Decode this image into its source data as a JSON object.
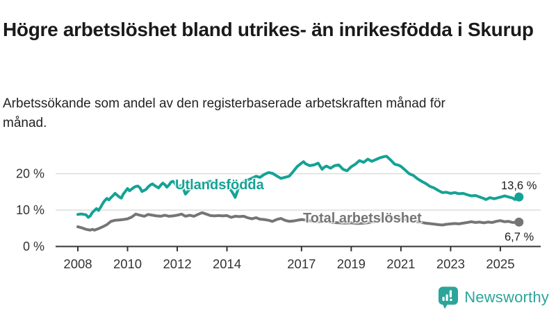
{
  "header": {
    "title": "Högre arbetslöshet bland utrikes- än inrikesfödda i Skurup",
    "subtitle": "Arbetssökande som andel av den registerbaserade arbetskraften månad för månad."
  },
  "chart_data": {
    "type": "line",
    "title": "Högre arbetslöshet bland utrikes- än inrikesfödda i Skurup",
    "xlabel": "",
    "ylabel": "",
    "x_axis": {
      "tick_years": [
        2008,
        2010,
        2012,
        2014,
        2017,
        2019,
        2021,
        2023,
        2025
      ],
      "tick_labels": [
        "2008",
        "2010",
        "2012",
        "2014",
        "2017",
        "2019",
        "2021",
        "2023",
        "2025"
      ],
      "range": [
        2007.3,
        2026.5
      ]
    },
    "y_axis": {
      "ticks": [
        0,
        10,
        20
      ],
      "tick_labels": [
        "0 %",
        "10 %",
        "20 %"
      ],
      "range": [
        0,
        26
      ],
      "unit": "%"
    },
    "grid": "horizontal",
    "colors": {
      "grid": "#dddddd",
      "axis": "#333333",
      "tick_text": "#333333"
    },
    "series": [
      {
        "name": "Utlandsfödda",
        "color": "#14a295",
        "end_value": 13.6,
        "end_label": "13,6 %",
        "points": [
          [
            2008.0,
            8.8
          ],
          [
            2008.08,
            8.9
          ],
          [
            2008.17,
            8.9
          ],
          [
            2008.25,
            8.8
          ],
          [
            2008.33,
            8.7
          ],
          [
            2008.42,
            8.0
          ],
          [
            2008.5,
            8.4
          ],
          [
            2008.58,
            9.3
          ],
          [
            2008.67,
            9.9
          ],
          [
            2008.75,
            10.4
          ],
          [
            2008.83,
            9.9
          ],
          [
            2008.92,
            10.8
          ],
          [
            2009.0,
            11.8
          ],
          [
            2009.08,
            12.6
          ],
          [
            2009.17,
            13.2
          ],
          [
            2009.25,
            12.8
          ],
          [
            2009.33,
            13.4
          ],
          [
            2009.42,
            14.0
          ],
          [
            2009.5,
            14.6
          ],
          [
            2009.58,
            14.1
          ],
          [
            2009.67,
            13.6
          ],
          [
            2009.75,
            13.3
          ],
          [
            2009.83,
            14.4
          ],
          [
            2009.92,
            15.2
          ],
          [
            2010.0,
            15.9
          ],
          [
            2010.08,
            15.3
          ],
          [
            2010.17,
            15.8
          ],
          [
            2010.25,
            16.2
          ],
          [
            2010.33,
            16.5
          ],
          [
            2010.42,
            16.6
          ],
          [
            2010.5,
            16.1
          ],
          [
            2010.58,
            15.1
          ],
          [
            2010.67,
            15.4
          ],
          [
            2010.75,
            15.7
          ],
          [
            2010.83,
            16.4
          ],
          [
            2010.92,
            16.9
          ],
          [
            2011.0,
            17.2
          ],
          [
            2011.08,
            16.8
          ],
          [
            2011.17,
            16.4
          ],
          [
            2011.25,
            16.1
          ],
          [
            2011.33,
            16.8
          ],
          [
            2011.42,
            17.4
          ],
          [
            2011.5,
            17.0
          ],
          [
            2011.58,
            16.3
          ],
          [
            2011.67,
            16.9
          ],
          [
            2011.75,
            17.7
          ],
          [
            2011.83,
            17.9
          ],
          [
            2011.92,
            17.2
          ],
          [
            2012.0,
            16.3
          ],
          [
            2012.08,
            16.6
          ],
          [
            2012.17,
            16.8
          ],
          [
            2012.25,
            15.8
          ],
          [
            2012.33,
            14.4
          ],
          [
            2012.42,
            15.1
          ],
          [
            2012.5,
            15.8
          ],
          [
            2012.58,
            16.1
          ],
          [
            2012.67,
            16.4
          ],
          [
            2012.83,
            16.9
          ],
          [
            2013.0,
            17.3
          ],
          [
            2013.17,
            17.6
          ],
          [
            2013.33,
            17.9
          ],
          [
            2013.5,
            17.2
          ],
          [
            2013.67,
            16.6
          ],
          [
            2013.83,
            16.1
          ],
          [
            2014.0,
            16.4
          ],
          [
            2014.08,
            15.9
          ],
          [
            2014.17,
            15.4
          ],
          [
            2014.25,
            14.5
          ],
          [
            2014.33,
            13.5
          ],
          [
            2014.42,
            15.2
          ],
          [
            2014.5,
            17.0
          ],
          [
            2014.58,
            17.5
          ],
          [
            2014.75,
            18.0
          ],
          [
            2014.92,
            18.5
          ],
          [
            2015.08,
            19.0
          ],
          [
            2015.17,
            19.3
          ],
          [
            2015.33,
            19.0
          ],
          [
            2015.5,
            19.8
          ],
          [
            2015.67,
            20.3
          ],
          [
            2015.83,
            20.1
          ],
          [
            2016.0,
            19.4
          ],
          [
            2016.17,
            18.7
          ],
          [
            2016.33,
            19.0
          ],
          [
            2016.5,
            19.3
          ],
          [
            2016.67,
            20.6
          ],
          [
            2016.83,
            22.0
          ],
          [
            2017.0,
            22.9
          ],
          [
            2017.08,
            23.3
          ],
          [
            2017.17,
            22.7
          ],
          [
            2017.33,
            22.2
          ],
          [
            2017.5,
            22.4
          ],
          [
            2017.67,
            22.9
          ],
          [
            2017.83,
            21.2
          ],
          [
            2017.92,
            21.8
          ],
          [
            2018.0,
            22.1
          ],
          [
            2018.17,
            21.5
          ],
          [
            2018.33,
            22.2
          ],
          [
            2018.5,
            22.4
          ],
          [
            2018.67,
            21.2
          ],
          [
            2018.83,
            20.8
          ],
          [
            2019.0,
            21.9
          ],
          [
            2019.17,
            22.6
          ],
          [
            2019.33,
            23.6
          ],
          [
            2019.5,
            23.1
          ],
          [
            2019.67,
            24.0
          ],
          [
            2019.83,
            23.4
          ],
          [
            2020.0,
            23.9
          ],
          [
            2020.17,
            24.4
          ],
          [
            2020.33,
            24.7
          ],
          [
            2020.42,
            24.8
          ],
          [
            2020.58,
            23.8
          ],
          [
            2020.75,
            22.6
          ],
          [
            2020.92,
            22.3
          ],
          [
            2021.0,
            22.0
          ],
          [
            2021.17,
            21.0
          ],
          [
            2021.33,
            20.0
          ],
          [
            2021.5,
            19.5
          ],
          [
            2021.67,
            18.6
          ],
          [
            2021.83,
            17.9
          ],
          [
            2022.0,
            17.3
          ],
          [
            2022.17,
            16.5
          ],
          [
            2022.33,
            16.1
          ],
          [
            2022.5,
            15.4
          ],
          [
            2022.67,
            14.8
          ],
          [
            2022.83,
            14.9
          ],
          [
            2023.0,
            14.6
          ],
          [
            2023.17,
            14.8
          ],
          [
            2023.33,
            14.5
          ],
          [
            2023.5,
            14.6
          ],
          [
            2023.67,
            14.2
          ],
          [
            2023.83,
            13.9
          ],
          [
            2024.0,
            14.0
          ],
          [
            2024.17,
            13.6
          ],
          [
            2024.33,
            13.2
          ],
          [
            2024.42,
            12.9
          ],
          [
            2024.58,
            13.4
          ],
          [
            2024.75,
            13.1
          ],
          [
            2024.92,
            13.4
          ],
          [
            2025.08,
            13.7
          ],
          [
            2025.17,
            13.9
          ],
          [
            2025.33,
            13.6
          ],
          [
            2025.5,
            13.3
          ],
          [
            2025.58,
            12.9
          ],
          [
            2025.75,
            13.6
          ]
        ]
      },
      {
        "name": "Total arbetslöshet",
        "color": "#757575",
        "end_value": 6.7,
        "end_label": "6,7 %",
        "points": [
          [
            2008.0,
            5.4
          ],
          [
            2008.17,
            5.1
          ],
          [
            2008.33,
            4.7
          ],
          [
            2008.5,
            4.5
          ],
          [
            2008.58,
            4.7
          ],
          [
            2008.67,
            4.5
          ],
          [
            2008.83,
            4.9
          ],
          [
            2009.0,
            5.4
          ],
          [
            2009.17,
            6.0
          ],
          [
            2009.33,
            6.9
          ],
          [
            2009.5,
            7.2
          ],
          [
            2009.67,
            7.3
          ],
          [
            2009.83,
            7.4
          ],
          [
            2010.0,
            7.6
          ],
          [
            2010.17,
            8.1
          ],
          [
            2010.33,
            8.9
          ],
          [
            2010.5,
            8.6
          ],
          [
            2010.67,
            8.3
          ],
          [
            2010.83,
            8.8
          ],
          [
            2011.0,
            8.6
          ],
          [
            2011.17,
            8.4
          ],
          [
            2011.33,
            8.3
          ],
          [
            2011.5,
            8.6
          ],
          [
            2011.67,
            8.3
          ],
          [
            2011.83,
            8.4
          ],
          [
            2012.0,
            8.6
          ],
          [
            2012.17,
            8.9
          ],
          [
            2012.33,
            8.3
          ],
          [
            2012.5,
            8.6
          ],
          [
            2012.67,
            8.3
          ],
          [
            2012.83,
            8.8
          ],
          [
            2013.0,
            9.3
          ],
          [
            2013.17,
            8.9
          ],
          [
            2013.33,
            8.5
          ],
          [
            2013.5,
            8.4
          ],
          [
            2013.67,
            8.5
          ],
          [
            2013.83,
            8.4
          ],
          [
            2014.0,
            8.5
          ],
          [
            2014.17,
            8.0
          ],
          [
            2014.33,
            8.3
          ],
          [
            2014.5,
            8.2
          ],
          [
            2014.67,
            8.3
          ],
          [
            2014.83,
            7.9
          ],
          [
            2015.0,
            7.6
          ],
          [
            2015.17,
            7.9
          ],
          [
            2015.33,
            7.5
          ],
          [
            2015.5,
            7.4
          ],
          [
            2015.67,
            7.2
          ],
          [
            2015.83,
            6.9
          ],
          [
            2016.0,
            7.4
          ],
          [
            2016.17,
            7.7
          ],
          [
            2016.33,
            7.2
          ],
          [
            2016.5,
            6.9
          ],
          [
            2016.67,
            7.0
          ],
          [
            2016.83,
            7.2
          ],
          [
            2017.0,
            7.4
          ],
          [
            2017.25,
            7.2
          ],
          [
            2017.5,
            6.9
          ],
          [
            2017.75,
            6.8
          ],
          [
            2018.0,
            6.9
          ],
          [
            2018.25,
            6.6
          ],
          [
            2018.5,
            6.5
          ],
          [
            2018.75,
            6.4
          ],
          [
            2019.0,
            6.5
          ],
          [
            2019.25,
            6.3
          ],
          [
            2019.5,
            6.4
          ],
          [
            2019.75,
            6.6
          ],
          [
            2020.0,
            6.9
          ],
          [
            2020.25,
            7.8
          ],
          [
            2020.42,
            8.2
          ],
          [
            2020.58,
            8.0
          ],
          [
            2020.75,
            7.8
          ],
          [
            2021.0,
            7.6
          ],
          [
            2021.25,
            7.3
          ],
          [
            2021.5,
            7.0
          ],
          [
            2021.75,
            6.7
          ],
          [
            2022.0,
            6.4
          ],
          [
            2022.25,
            6.2
          ],
          [
            2022.5,
            6.0
          ],
          [
            2022.67,
            5.9
          ],
          [
            2022.83,
            6.1
          ],
          [
            2023.0,
            6.2
          ],
          [
            2023.17,
            6.3
          ],
          [
            2023.33,
            6.2
          ],
          [
            2023.5,
            6.4
          ],
          [
            2023.67,
            6.6
          ],
          [
            2023.83,
            6.8
          ],
          [
            2024.0,
            6.6
          ],
          [
            2024.17,
            6.7
          ],
          [
            2024.33,
            6.5
          ],
          [
            2024.5,
            6.7
          ],
          [
            2024.67,
            6.6
          ],
          [
            2024.83,
            6.9
          ],
          [
            2025.0,
            7.1
          ],
          [
            2025.17,
            6.8
          ],
          [
            2025.33,
            6.9
          ],
          [
            2025.5,
            6.6
          ],
          [
            2025.75,
            6.7
          ]
        ]
      }
    ],
    "legend_position": "inline-labels"
  },
  "branding": {
    "name": "Newsworthy",
    "icon": "bar-chart-speech-bubble-icon",
    "color": "#2ba59a"
  }
}
